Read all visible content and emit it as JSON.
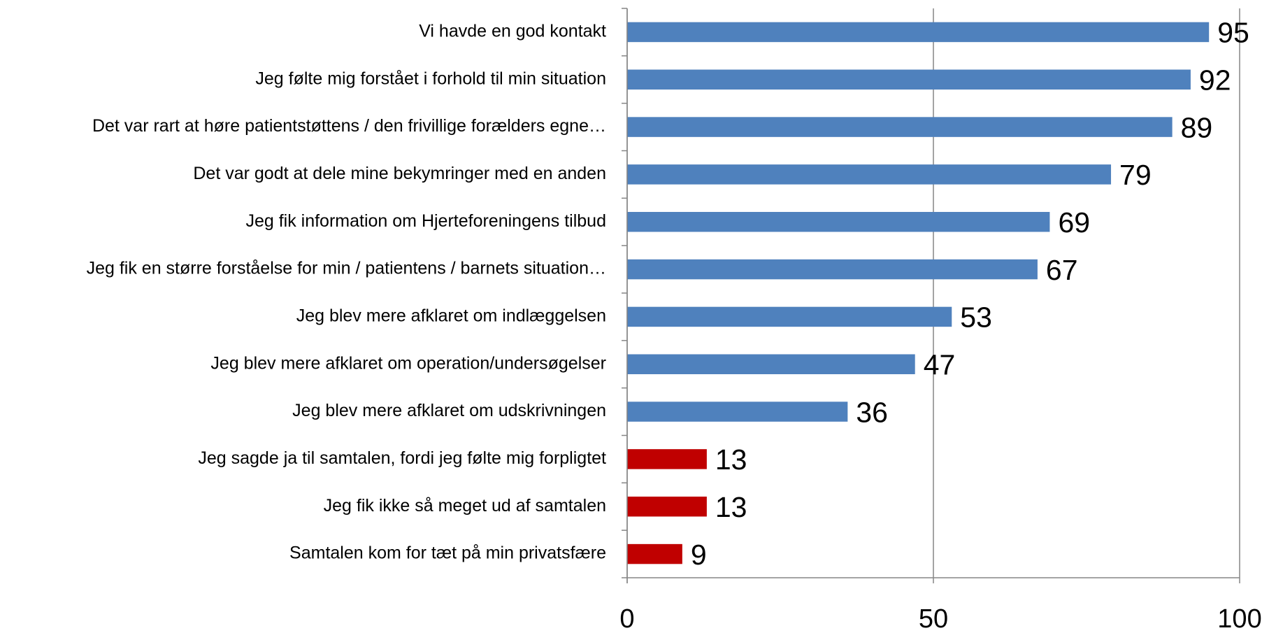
{
  "chart_data": {
    "type": "barh",
    "categories": [
      "Vi havde en god kontakt",
      "Jeg følte mig forstået i forhold til min situation",
      "Det var rart at høre patientstøttens / den frivillige forælders egne…",
      "Det var godt at dele mine bekymringer med en anden",
      "Jeg fik information om Hjerteforeningens tilbud",
      "Jeg fik en større forståelse for min / patientens / barnets situation…",
      "Jeg blev mere afklaret om indlæggelsen",
      "Jeg blev mere afklaret om operation/undersøgelser",
      "Jeg blev mere afklaret om udskrivningen",
      "Jeg sagde ja til samtalen, fordi jeg følte mig forpligtet",
      "Jeg fik ikke så meget ud af samtalen",
      "Samtalen kom for tæt på min privatsfære"
    ],
    "values": [
      95,
      92,
      89,
      79,
      69,
      67,
      53,
      47,
      36,
      13,
      13,
      9
    ],
    "colors": [
      "#4f81bd",
      "#4f81bd",
      "#4f81bd",
      "#4f81bd",
      "#4f81bd",
      "#4f81bd",
      "#4f81bd",
      "#4f81bd",
      "#4f81bd",
      "#c00000",
      "#c00000",
      "#c00000"
    ],
    "xlim": [
      0,
      100
    ],
    "xticks": [
      0,
      50,
      100
    ],
    "grid": true
  }
}
